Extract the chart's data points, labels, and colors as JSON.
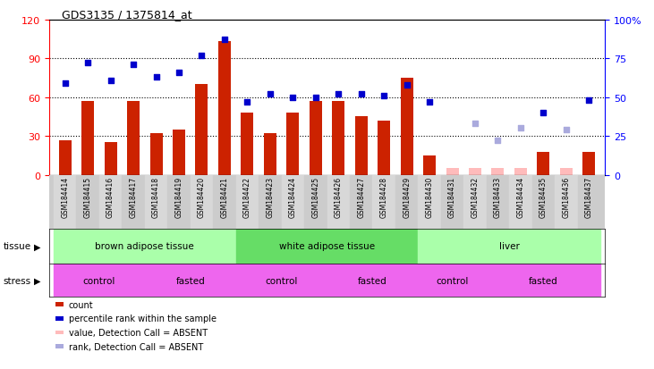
{
  "title": "GDS3135 / 1375814_at",
  "samples": [
    "GSM184414",
    "GSM184415",
    "GSM184416",
    "GSM184417",
    "GSM184418",
    "GSM184419",
    "GSM184420",
    "GSM184421",
    "GSM184422",
    "GSM184423",
    "GSM184424",
    "GSM184425",
    "GSM184426",
    "GSM184427",
    "GSM184428",
    "GSM184429",
    "GSM184430",
    "GSM184431",
    "GSM184432",
    "GSM184433",
    "GSM184434",
    "GSM184435",
    "GSM184436",
    "GSM184437"
  ],
  "count_values": [
    27,
    57,
    25,
    57,
    32,
    35,
    70,
    103,
    48,
    32,
    48,
    57,
    57,
    45,
    42,
    75,
    15,
    5,
    5,
    5,
    5,
    18,
    5,
    18
  ],
  "rank_values": [
    59,
    72,
    61,
    71,
    63,
    66,
    77,
    87,
    47,
    52,
    50,
    50,
    52,
    52,
    51,
    58,
    47,
    null,
    33,
    22,
    30,
    40,
    29,
    48
  ],
  "absent": [
    false,
    false,
    false,
    false,
    false,
    false,
    false,
    false,
    false,
    false,
    false,
    false,
    false,
    false,
    false,
    false,
    false,
    true,
    true,
    true,
    true,
    false,
    true,
    false
  ],
  "tissues": [
    {
      "label": "brown adipose tissue",
      "start": 0,
      "end": 7
    },
    {
      "label": "white adipose tissue",
      "start": 8,
      "end": 15
    },
    {
      "label": "liver",
      "start": 16,
      "end": 23
    }
  ],
  "stress_groups": [
    {
      "label": "control",
      "start": 0,
      "end": 3
    },
    {
      "label": "fasted",
      "start": 4,
      "end": 7
    },
    {
      "label": "control",
      "start": 8,
      "end": 11
    },
    {
      "label": "fasted",
      "start": 12,
      "end": 15
    },
    {
      "label": "control",
      "start": 16,
      "end": 18
    },
    {
      "label": "fasted",
      "start": 19,
      "end": 23
    }
  ],
  "ylim_left": [
    0,
    120
  ],
  "ylim_right": [
    0,
    100
  ],
  "yticks_left": [
    0,
    30,
    60,
    90,
    120
  ],
  "yticks_right": [
    0,
    25,
    50,
    75,
    100
  ],
  "bar_color_present": "#cc2200",
  "bar_color_absent": "#ffbbbb",
  "rank_color_present": "#0000cc",
  "rank_color_absent": "#aaaadd",
  "tissue_color_light": "#aaffaa",
  "tissue_color_dark": "#66dd66",
  "stress_color": "#ee66ee",
  "legend_items": [
    {
      "label": "count",
      "color": "#cc2200"
    },
    {
      "label": "percentile rank within the sample",
      "color": "#0000cc"
    },
    {
      "label": "value, Detection Call = ABSENT",
      "color": "#ffbbbb"
    },
    {
      "label": "rank, Detection Call = ABSENT",
      "color": "#aaaadd"
    }
  ]
}
